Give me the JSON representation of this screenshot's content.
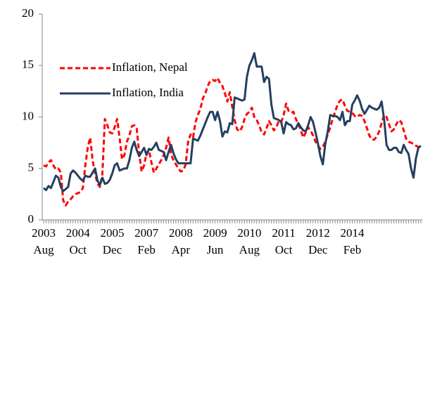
{
  "chart_data": {
    "type": "line",
    "categories": [
      "2003 Aug",
      null,
      null,
      null,
      null,
      null,
      null,
      null,
      null,
      null,
      null,
      null,
      null,
      null,
      "2004 Oct",
      null,
      null,
      null,
      null,
      null,
      null,
      null,
      null,
      null,
      null,
      null,
      null,
      null,
      "2005 Dec",
      null,
      null,
      null,
      null,
      null,
      null,
      null,
      null,
      null,
      null,
      null,
      null,
      null,
      "2007 Feb",
      null,
      null,
      null,
      null,
      null,
      null,
      null,
      null,
      null,
      null,
      null,
      null,
      null,
      "2008 Apr",
      null,
      null,
      null,
      null,
      null,
      null,
      null,
      null,
      null,
      null,
      null,
      null,
      null,
      "2009 Jun",
      null,
      null,
      null,
      null,
      null,
      null,
      null,
      null,
      null,
      null,
      null,
      null,
      null,
      "2010 Aug",
      null,
      null,
      null,
      null,
      null,
      null,
      null,
      null,
      null,
      null,
      null,
      null,
      null,
      "2011 Oct",
      null,
      null,
      null,
      null,
      null,
      null,
      null,
      null,
      null,
      null,
      null,
      null,
      null,
      "2012 Dec",
      null,
      null,
      null,
      null,
      null,
      null,
      null,
      null,
      null,
      null,
      null,
      null,
      null,
      "2014 Feb",
      null,
      null,
      null,
      null,
      null,
      null,
      null,
      null,
      null,
      null,
      null,
      null,
      null,
      null,
      null,
      null,
      null,
      null,
      null,
      null,
      null,
      null,
      null,
      null,
      null,
      null,
      null,
      null
    ],
    "series": [
      {
        "name": "Inflation, Nepal",
        "color": "#ff0000",
        "dashed": true,
        "values": [
          5.3,
          5.2,
          5.6,
          5.8,
          5.3,
          4.9,
          5.0,
          4.6,
          1.9,
          1.4,
          1.8,
          2.0,
          2.3,
          2.5,
          2.6,
          2.7,
          3.1,
          5.3,
          7.0,
          8.0,
          5.8,
          4.5,
          3.5,
          3.2,
          4.5,
          9.8,
          9.2,
          8.5,
          8.4,
          9.0,
          9.8,
          8.0,
          5.9,
          6.3,
          7.6,
          8.2,
          9.1,
          9.2,
          8.9,
          6.5,
          4.7,
          5.3,
          6.5,
          6.8,
          5.6,
          4.6,
          5.0,
          5.4,
          5.8,
          6.3,
          7.0,
          8.0,
          6.4,
          5.8,
          5.4,
          5.0,
          4.7,
          4.8,
          5.4,
          7.6,
          8.3,
          8.0,
          9.5,
          10.2,
          10.8,
          11.8,
          12.3,
          13.0,
          13.5,
          13.6,
          13.5,
          13.8,
          13.3,
          13.0,
          12.3,
          11.5,
          12.4,
          11.0,
          9.7,
          8.8,
          8.6,
          9.0,
          9.8,
          10.3,
          10.5,
          10.9,
          10.0,
          9.7,
          9.2,
          8.5,
          8.3,
          8.9,
          9.6,
          9.2,
          8.7,
          9.0,
          9.6,
          9.5,
          10.2,
          11.3,
          10.6,
          10.4,
          10.5,
          9.8,
          9.3,
          8.7,
          8.0,
          8.5,
          9.0,
          8.7,
          8.2,
          7.6,
          7.2,
          6.9,
          7.1,
          7.6,
          8.3,
          9.0,
          9.8,
          10.5,
          11.2,
          11.6,
          11.7,
          11.1,
          10.6,
          10.5,
          10.4,
          10.1,
          10.0,
          10.2,
          10.1,
          9.6,
          8.9,
          8.2,
          7.8,
          7.8,
          8.1,
          8.6,
          9.4,
          10.2,
          10.0,
          9.3,
          8.6,
          8.8,
          9.3,
          9.7,
          9.5,
          8.7,
          7.9,
          7.6,
          7.5,
          7.4,
          7.2,
          7.1,
          7.0
        ]
      },
      {
        "name": "Inflation, India",
        "color": "#243f60",
        "dashed": false,
        "values": [
          3.1,
          2.9,
          3.3,
          3.1,
          3.7,
          4.3,
          4.1,
          3.2,
          2.8,
          3.0,
          3.2,
          4.5,
          4.8,
          4.6,
          4.3,
          4.0,
          3.8,
          4.3,
          4.2,
          4.2,
          4.6,
          5.0,
          3.8,
          3.4,
          4.1,
          3.5,
          3.6,
          3.9,
          4.5,
          5.3,
          5.5,
          4.8,
          4.9,
          5.0,
          5.0,
          5.8,
          7.0,
          7.6,
          6.8,
          6.2,
          6.6,
          7.0,
          6.3,
          6.9,
          6.8,
          7.1,
          7.5,
          6.8,
          6.7,
          6.6,
          5.8,
          6.6,
          7.3,
          6.5,
          5.9,
          5.5,
          5.5,
          5.5,
          5.5,
          5.5,
          5.5,
          7.9,
          7.8,
          7.7,
          8.2,
          8.8,
          9.4,
          10.0,
          10.5,
          10.5,
          9.7,
          10.5,
          9.6,
          8.1,
          8.6,
          8.5,
          9.4,
          9.3,
          11.9,
          11.8,
          11.7,
          11.6,
          11.7,
          13.9,
          15.0,
          15.5,
          16.2,
          14.9,
          14.9,
          14.9,
          13.4,
          13.9,
          13.7,
          11.2,
          9.9,
          9.8,
          9.7,
          9.5,
          8.4,
          9.5,
          9.3,
          9.2,
          8.8,
          8.9,
          9.4,
          9.0,
          8.7,
          8.6,
          9.2,
          10.0,
          9.5,
          8.5,
          7.4,
          6.2,
          5.4,
          7.4,
          8.6,
          10.2,
          10.1,
          10.1,
          10.0,
          9.7,
          10.5,
          9.2,
          9.6,
          9.6,
          11.2,
          11.6,
          12.1,
          11.6,
          10.8,
          10.3,
          10.7,
          11.1,
          10.9,
          10.8,
          10.7,
          10.9,
          11.5,
          9.8,
          7.3,
          6.8,
          6.8,
          7.0,
          7.0,
          6.6,
          6.5,
          7.3,
          6.8,
          6.4,
          5.0,
          4.1,
          6.0,
          7.0,
          7.2
        ]
      }
    ],
    "ylim": [
      0,
      20
    ],
    "yticks": [
      0,
      5,
      10,
      15,
      20
    ],
    "grid": false,
    "legend": "upper left"
  }
}
